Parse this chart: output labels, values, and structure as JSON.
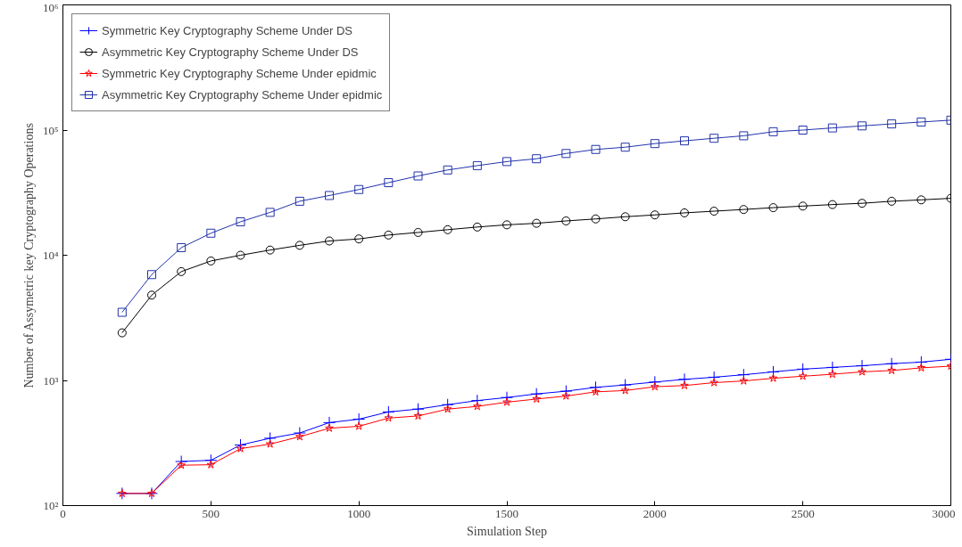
{
  "chart_data": {
    "type": "line",
    "xlabel": "Simulation Step",
    "ylabel": "Number of Assymetric key Cryptography Operations",
    "x": [
      200,
      300,
      400,
      500,
      600,
      700,
      800,
      900,
      1000,
      1100,
      1200,
      1300,
      1400,
      1500,
      1600,
      1700,
      1800,
      1900,
      2000,
      2100,
      2200,
      2300,
      2400,
      2500,
      2600,
      2700,
      2800,
      2900,
      3000
    ],
    "series": [
      {
        "name": "Symmetric Key Cryptography Scheme Under DS",
        "color": "#0000ff",
        "marker": "cross",
        "values": [
          125,
          125,
          225,
          230,
          305,
          345,
          380,
          460,
          490,
          560,
          590,
          640,
          690,
          730,
          780,
          820,
          880,
          920,
          970,
          1020,
          1060,
          1110,
          1170,
          1230,
          1270,
          1310,
          1360,
          1400,
          1475
        ]
      },
      {
        "name": "Asymmetric Key Cryptography Scheme Under DS",
        "color": "#000000",
        "marker": "circle",
        "values": [
          2400,
          4800,
          7400,
          9000,
          10000,
          11000,
          12000,
          13000,
          13500,
          14500,
          15200,
          16000,
          16800,
          17500,
          18000,
          18800,
          19500,
          20300,
          21000,
          21800,
          22500,
          23200,
          24000,
          24700,
          25400,
          26000,
          27000,
          27700,
          28500
        ]
      },
      {
        "name": "Symmetric Key Cryptography Scheme Under epidmic",
        "color": "#ff0000",
        "marker": "star",
        "values": [
          125,
          125,
          210,
          212,
          285,
          310,
          355,
          415,
          430,
          500,
          520,
          590,
          620,
          670,
          710,
          750,
          810,
          830,
          890,
          910,
          960,
          990,
          1040,
          1080,
          1120,
          1170,
          1200,
          1260,
          1300
        ]
      },
      {
        "name": "Asymmetric Key Cryptography Scheme Under epidmic",
        "color": "#2233aa",
        "marker": "square",
        "values": [
          3500,
          7000,
          11500,
          15000,
          18500,
          22000,
          27000,
          30000,
          33500,
          38000,
          43000,
          48000,
          52000,
          56000,
          59000,
          65000,
          70000,
          73000,
          78000,
          82000,
          86000,
          90000,
          97000,
          100000,
          104000,
          108000,
          112000,
          116000,
          120000
        ]
      }
    ],
    "xlim": [
      0,
      3000
    ],
    "xticks": [
      0,
      500,
      1000,
      1500,
      2000,
      2500,
      3000
    ],
    "ylim": [
      100,
      1000000
    ],
    "yticks": [
      {
        "value": 100,
        "label": "10²"
      },
      {
        "value": 1000,
        "label": "10³"
      },
      {
        "value": 10000,
        "label": "10⁴"
      },
      {
        "value": 100000,
        "label": "10⁵"
      },
      {
        "value": 1000000,
        "label": "10⁶"
      }
    ],
    "log": "y",
    "legend": "top left",
    "grid": false,
    "line_style": "solid"
  }
}
